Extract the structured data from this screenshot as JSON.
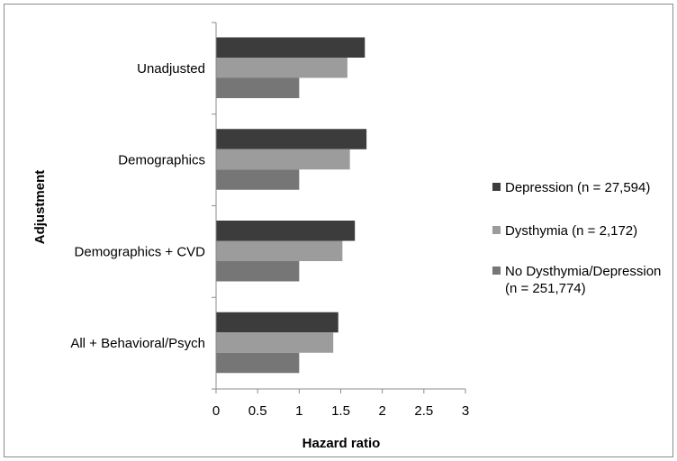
{
  "chart_data": {
    "type": "bar",
    "orientation": "horizontal",
    "title": "",
    "xlabel": "Hazard ratio",
    "ylabel": "Adjustment",
    "xlim": [
      0,
      3
    ],
    "x_ticks": [
      "0",
      "0.5",
      "1",
      "1.5",
      "2",
      "2.5",
      "3"
    ],
    "categories": [
      "Unadjusted",
      "Demographics",
      "Demographics + CVD",
      "All + Behavioral/Psych"
    ],
    "series": [
      {
        "name": "Depression (n = 27,594)",
        "values": [
          1.79,
          1.81,
          1.67,
          1.47
        ],
        "color": "#3c3c3c"
      },
      {
        "name": "Dysthymia (n = 2,172)",
        "values": [
          1.58,
          1.61,
          1.52,
          1.41
        ],
        "color": "#9c9c9c"
      },
      {
        "name": "No Dysthymia/Depression (n = 251,774)",
        "name_lines": [
          "No Dysthymia/Depression",
          "(n = 251,774)"
        ],
        "values": [
          1.0,
          1.0,
          1.0,
          1.0
        ],
        "color": "#767676"
      }
    ],
    "legend_position": "right",
    "grid": false
  }
}
